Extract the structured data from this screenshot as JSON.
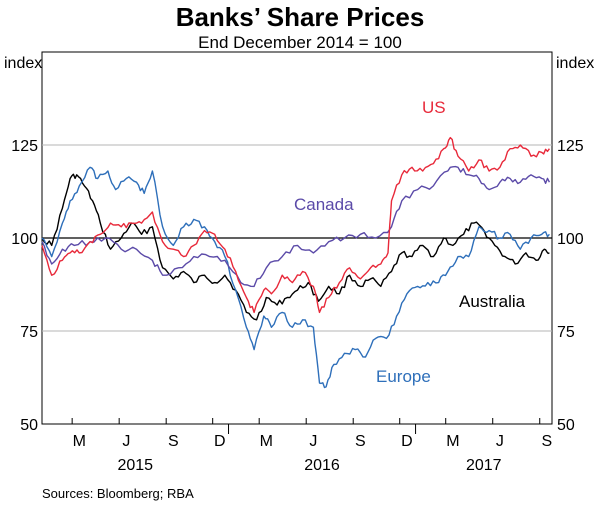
{
  "chart_data": {
    "type": "line",
    "title": "Banks’ Share Prices",
    "subtitle": "End December 2014 = 100",
    "ylabel_left": "index",
    "ylabel_right": "index",
    "ylim": [
      50,
      150
    ],
    "yticks": [
      50,
      75,
      100,
      125
    ],
    "reference_line": 100,
    "xlim": [
      "2015-01-01",
      "2017-09-25"
    ],
    "month_ticks": [
      {
        "label": "M",
        "month": 3,
        "year": 2015
      },
      {
        "label": "J",
        "month": 6,
        "year": 2015
      },
      {
        "label": "S",
        "month": 9,
        "year": 2015
      },
      {
        "label": "D",
        "month": 12,
        "year": 2015
      },
      {
        "label": "M",
        "month": 3,
        "year": 2016
      },
      {
        "label": "J",
        "month": 6,
        "year": 2016
      },
      {
        "label": "S",
        "month": 9,
        "year": 2016
      },
      {
        "label": "D",
        "month": 12,
        "year": 2016
      },
      {
        "label": "M",
        "month": 3,
        "year": 2017
      },
      {
        "label": "J",
        "month": 6,
        "year": 2017
      },
      {
        "label": "S",
        "month": 9,
        "year": 2017
      }
    ],
    "year_labels": [
      "2015",
      "2016",
      "2017"
    ],
    "source": "Sources: Bloomberg; RBA",
    "series": [
      {
        "name": "Australia",
        "color": "#000000",
        "label": "Australia",
        "points": [
          [
            "2015-01-01",
            100
          ],
          [
            "2015-01-20",
            98
          ],
          [
            "2015-02-10",
            108
          ],
          [
            "2015-02-25",
            116
          ],
          [
            "2015-03-10",
            117
          ],
          [
            "2015-03-25",
            114
          ],
          [
            "2015-04-10",
            110
          ],
          [
            "2015-04-25",
            104
          ],
          [
            "2015-05-15",
            97
          ],
          [
            "2015-06-05",
            100
          ],
          [
            "2015-06-25",
            104
          ],
          [
            "2015-07-15",
            101
          ],
          [
            "2015-08-05",
            103
          ],
          [
            "2015-08-25",
            92
          ],
          [
            "2015-09-15",
            89
          ],
          [
            "2015-10-05",
            91
          ],
          [
            "2015-10-25",
            88
          ],
          [
            "2015-11-15",
            90
          ],
          [
            "2015-12-05",
            88
          ],
          [
            "2015-12-25",
            90
          ],
          [
            "2016-01-15",
            86
          ],
          [
            "2016-02-05",
            80
          ],
          [
            "2016-02-25",
            78
          ],
          [
            "2016-03-15",
            84
          ],
          [
            "2016-04-05",
            82
          ],
          [
            "2016-04-25",
            84
          ],
          [
            "2016-05-15",
            86
          ],
          [
            "2016-06-05",
            88
          ],
          [
            "2016-06-25",
            83
          ],
          [
            "2016-07-15",
            87
          ],
          [
            "2016-08-05",
            85
          ],
          [
            "2016-08-25",
            90
          ],
          [
            "2016-09-15",
            87
          ],
          [
            "2016-10-05",
            89
          ],
          [
            "2016-10-25",
            87
          ],
          [
            "2016-11-15",
            91
          ],
          [
            "2016-12-05",
            96
          ],
          [
            "2016-12-25",
            95
          ],
          [
            "2017-01-15",
            98
          ],
          [
            "2017-02-05",
            95
          ],
          [
            "2017-02-25",
            100
          ],
          [
            "2017-03-15",
            98
          ],
          [
            "2017-04-05",
            101
          ],
          [
            "2017-04-25",
            104
          ],
          [
            "2017-05-15",
            102
          ],
          [
            "2017-06-05",
            98
          ],
          [
            "2017-06-25",
            95
          ],
          [
            "2017-07-15",
            93
          ],
          [
            "2017-08-05",
            96
          ],
          [
            "2017-08-25",
            94
          ],
          [
            "2017-09-10",
            97
          ],
          [
            "2017-09-20",
            96
          ]
        ]
      },
      {
        "name": "Europe",
        "color": "#2e6fba",
        "label": "Europe",
        "points": [
          [
            "2015-01-01",
            100
          ],
          [
            "2015-01-20",
            95
          ],
          [
            "2015-02-10",
            104
          ],
          [
            "2015-02-25",
            110
          ],
          [
            "2015-03-15",
            114
          ],
          [
            "2015-04-05",
            119
          ],
          [
            "2015-04-20",
            116
          ],
          [
            "2015-05-10",
            118
          ],
          [
            "2015-05-25",
            113
          ],
          [
            "2015-06-15",
            116
          ],
          [
            "2015-07-05",
            115
          ],
          [
            "2015-07-20",
            112
          ],
          [
            "2015-08-05",
            118
          ],
          [
            "2015-08-25",
            103
          ],
          [
            "2015-09-15",
            98
          ],
          [
            "2015-10-05",
            103
          ],
          [
            "2015-10-25",
            105
          ],
          [
            "2015-11-15",
            103
          ],
          [
            "2015-12-05",
            99
          ],
          [
            "2015-12-25",
            95
          ],
          [
            "2016-01-15",
            86
          ],
          [
            "2016-02-05",
            76
          ],
          [
            "2016-02-20",
            70
          ],
          [
            "2016-03-10",
            79
          ],
          [
            "2016-03-25",
            76
          ],
          [
            "2016-04-15",
            80
          ],
          [
            "2016-05-05",
            76
          ],
          [
            "2016-05-25",
            78
          ],
          [
            "2016-06-15",
            76
          ],
          [
            "2016-06-27",
            61
          ],
          [
            "2016-07-10",
            60
          ],
          [
            "2016-07-25",
            66
          ],
          [
            "2016-08-15",
            69
          ],
          [
            "2016-09-05",
            70
          ],
          [
            "2016-09-25",
            68
          ],
          [
            "2016-10-15",
            73
          ],
          [
            "2016-11-05",
            73
          ],
          [
            "2016-11-25",
            79
          ],
          [
            "2016-12-15",
            85
          ],
          [
            "2017-01-05",
            87
          ],
          [
            "2017-01-25",
            88
          ],
          [
            "2017-02-15",
            88
          ],
          [
            "2017-03-05",
            91
          ],
          [
            "2017-03-25",
            95
          ],
          [
            "2017-04-15",
            95
          ],
          [
            "2017-05-05",
            103
          ],
          [
            "2017-05-25",
            102
          ],
          [
            "2017-06-15",
            100
          ],
          [
            "2017-07-05",
            101
          ],
          [
            "2017-07-25",
            97
          ],
          [
            "2017-08-15",
            100
          ],
          [
            "2017-09-05",
            101
          ],
          [
            "2017-09-20",
            101
          ]
        ]
      },
      {
        "name": "Canada",
        "color": "#5b4aa8",
        "label": "Canada",
        "points": [
          [
            "2015-01-01",
            99
          ],
          [
            "2015-01-20",
            93
          ],
          [
            "2015-02-10",
            97
          ],
          [
            "2015-03-05",
            98
          ],
          [
            "2015-04-05",
            99
          ],
          [
            "2015-05-05",
            100
          ],
          [
            "2015-06-05",
            97
          ],
          [
            "2015-07-05",
            97
          ],
          [
            "2015-08-05",
            94
          ],
          [
            "2015-08-25",
            90
          ],
          [
            "2015-09-25",
            92
          ],
          [
            "2015-10-25",
            95
          ],
          [
            "2015-11-25",
            95
          ],
          [
            "2015-12-25",
            94
          ],
          [
            "2016-01-25",
            88
          ],
          [
            "2016-02-20",
            87
          ],
          [
            "2016-03-15",
            92
          ],
          [
            "2016-04-15",
            95
          ],
          [
            "2016-05-15",
            98
          ],
          [
            "2016-06-15",
            96
          ],
          [
            "2016-07-15",
            99
          ],
          [
            "2016-08-15",
            100
          ],
          [
            "2016-09-15",
            101
          ],
          [
            "2016-10-15",
            100
          ],
          [
            "2016-11-15",
            103
          ],
          [
            "2016-12-05",
            110
          ],
          [
            "2017-01-05",
            113
          ],
          [
            "2017-02-05",
            114
          ],
          [
            "2017-03-05",
            118
          ],
          [
            "2017-03-25",
            119
          ],
          [
            "2017-04-15",
            117
          ],
          [
            "2017-05-05",
            116
          ],
          [
            "2017-05-25",
            113
          ],
          [
            "2017-06-15",
            115
          ],
          [
            "2017-07-05",
            116
          ],
          [
            "2017-07-25",
            115
          ],
          [
            "2017-08-15",
            117
          ],
          [
            "2017-09-05",
            116
          ],
          [
            "2017-09-20",
            115
          ]
        ]
      },
      {
        "name": "US",
        "color": "#e8293a",
        "label": "US",
        "points": [
          [
            "2015-01-01",
            98
          ],
          [
            "2015-01-20",
            90
          ],
          [
            "2015-02-10",
            94
          ],
          [
            "2015-02-25",
            96
          ],
          [
            "2015-03-15",
            96
          ],
          [
            "2015-04-05",
            99
          ],
          [
            "2015-04-25",
            101
          ],
          [
            "2015-05-15",
            104
          ],
          [
            "2015-06-05",
            103
          ],
          [
            "2015-06-25",
            104
          ],
          [
            "2015-07-15",
            104
          ],
          [
            "2015-08-05",
            107
          ],
          [
            "2015-08-25",
            99
          ],
          [
            "2015-09-15",
            97
          ],
          [
            "2015-10-05",
            95
          ],
          [
            "2015-10-25",
            98
          ],
          [
            "2015-11-15",
            102
          ],
          [
            "2015-12-05",
            101
          ],
          [
            "2015-12-25",
            97
          ],
          [
            "2016-01-15",
            91
          ],
          [
            "2016-02-05",
            84
          ],
          [
            "2016-02-20",
            80
          ],
          [
            "2016-03-10",
            86
          ],
          [
            "2016-03-25",
            85
          ],
          [
            "2016-04-15",
            90
          ],
          [
            "2016-05-05",
            88
          ],
          [
            "2016-05-25",
            91
          ],
          [
            "2016-06-15",
            87
          ],
          [
            "2016-06-27",
            80
          ],
          [
            "2016-07-15",
            84
          ],
          [
            "2016-08-05",
            88
          ],
          [
            "2016-08-25",
            92
          ],
          [
            "2016-09-15",
            89
          ],
          [
            "2016-10-05",
            92
          ],
          [
            "2016-10-25",
            93
          ],
          [
            "2016-11-08",
            96
          ],
          [
            "2016-11-15",
            110
          ],
          [
            "2016-12-05",
            117
          ],
          [
            "2016-12-25",
            119
          ],
          [
            "2017-01-15",
            118
          ],
          [
            "2017-02-05",
            120
          ],
          [
            "2017-02-25",
            124
          ],
          [
            "2017-03-10",
            127
          ],
          [
            "2017-03-25",
            122
          ],
          [
            "2017-04-15",
            118
          ],
          [
            "2017-05-05",
            121
          ],
          [
            "2017-05-25",
            118
          ],
          [
            "2017-06-15",
            119
          ],
          [
            "2017-07-05",
            124
          ],
          [
            "2017-07-25",
            125
          ],
          [
            "2017-08-15",
            122
          ],
          [
            "2017-09-05",
            123
          ],
          [
            "2017-09-20",
            124
          ]
        ]
      }
    ]
  }
}
